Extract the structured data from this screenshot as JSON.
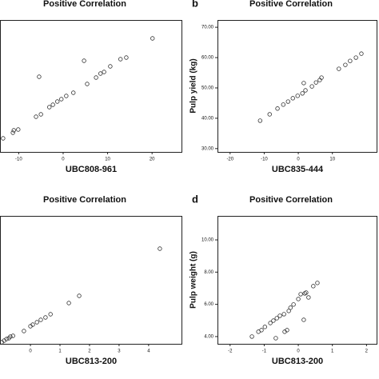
{
  "chart_data": [
    {
      "type": "scatter",
      "title": "Positive Correlation",
      "xlabel": "UBC808-961",
      "x": [
        -13.5,
        -11.3,
        -11.1,
        -10.1,
        -6.1,
        -5.0,
        -5.4,
        -3.1,
        -2.3,
        -1.3,
        -0.4,
        0.7,
        2.3,
        4.7,
        5.4,
        7.4,
        8.4,
        9.2,
        10.6,
        12.9,
        14.2,
        20.1
      ],
      "values": [
        17,
        24,
        27,
        28,
        44,
        47,
        94,
        56,
        59,
        63,
        66,
        70,
        74,
        114,
        85,
        93,
        98,
        100,
        107,
        116,
        118,
        142
      ],
      "xlim": [
        -14.2,
        26.8
      ],
      "ylim": [
        0,
        165
      ],
      "xticks": [
        -10,
        0,
        10,
        20
      ]
    },
    {
      "type": "scatter",
      "label": "b",
      "title": "Positive Correlation",
      "xlabel": "UBC835-444",
      "ylabel": "Pulp yield (kg)",
      "x": [
        -11.2,
        -8.4,
        -6.1,
        -4.4,
        -3.0,
        -1.6,
        -0.2,
        1.2,
        2.1,
        4.0,
        1.6,
        5.2,
        6.3,
        6.8,
        11.9,
        13.8,
        15.2,
        16.9,
        18.5
      ],
      "values": [
        39.2,
        41.3,
        43.2,
        44.5,
        45.5,
        46.6,
        47.4,
        48.2,
        49.2,
        50.5,
        51.6,
        51.8,
        52.6,
        53.4,
        56.3,
        57.6,
        58.9,
        60.0,
        61.3
      ],
      "xlim": [
        -23.7,
        23.2
      ],
      "ylim": [
        28.9,
        72.4
      ],
      "xticks": [
        -20,
        -10,
        0,
        10
      ],
      "yticks": [
        {
          "value": 30,
          "label": "30.00"
        },
        {
          "value": 40,
          "label": "40.00"
        },
        {
          "value": 50,
          "label": "50.00"
        },
        {
          "value": 60,
          "label": "60.00"
        },
        {
          "value": 70,
          "label": "70.00"
        }
      ]
    },
    {
      "type": "scatter",
      "title": "Positive Correlation",
      "xlabel": "UBC813-200",
      "x": [
        -0.97,
        -0.89,
        -0.81,
        -0.73,
        -0.68,
        -0.59,
        -0.22,
        0,
        0.08,
        0.22,
        0.35,
        0.51,
        0.68,
        1.3,
        1.65,
        4.38
      ],
      "values": [
        2,
        4,
        6,
        7,
        9,
        10,
        16,
        22,
        24,
        27,
        30,
        33,
        37,
        51,
        60,
        119
      ],
      "xlim": [
        -1.03,
        5.14
      ],
      "ylim": [
        0,
        160
      ],
      "xticks": [
        0,
        1,
        2,
        3,
        4
      ]
    },
    {
      "type": "scatter",
      "label": "d",
      "title": "Positive Correlation",
      "xlabel": "UBC813-200",
      "ylabel": "Pulp weight (g)",
      "x": [
        -1.36,
        -1.17,
        -1.08,
        -0.98,
        -0.82,
        -0.73,
        -0.63,
        -0.54,
        -0.42,
        -0.28,
        -0.23,
        -0.14,
        0,
        0.07,
        0.19,
        0.23,
        0.3,
        0.44,
        0.56,
        -0.66,
        -0.4,
        -0.33,
        0.16
      ],
      "values": [
        4.0,
        4.3,
        4.4,
        4.6,
        4.84,
        4.99,
        5.14,
        5.29,
        5.39,
        5.59,
        5.79,
        5.99,
        6.33,
        6.63,
        6.68,
        6.73,
        6.43,
        7.13,
        7.33,
        3.9,
        4.3,
        4.4,
        5.04
      ],
      "xlim": [
        -2.37,
        2.32
      ],
      "ylim": [
        3.55,
        11.49
      ],
      "xticks": [
        -2,
        -1,
        0,
        1,
        2
      ],
      "yticks": [
        {
          "value": 4,
          "label": "4.00"
        },
        {
          "value": 6,
          "label": "6.00"
        },
        {
          "value": 8,
          "label": "8.00"
        },
        {
          "value": 10,
          "label": "10.00"
        }
      ]
    }
  ]
}
